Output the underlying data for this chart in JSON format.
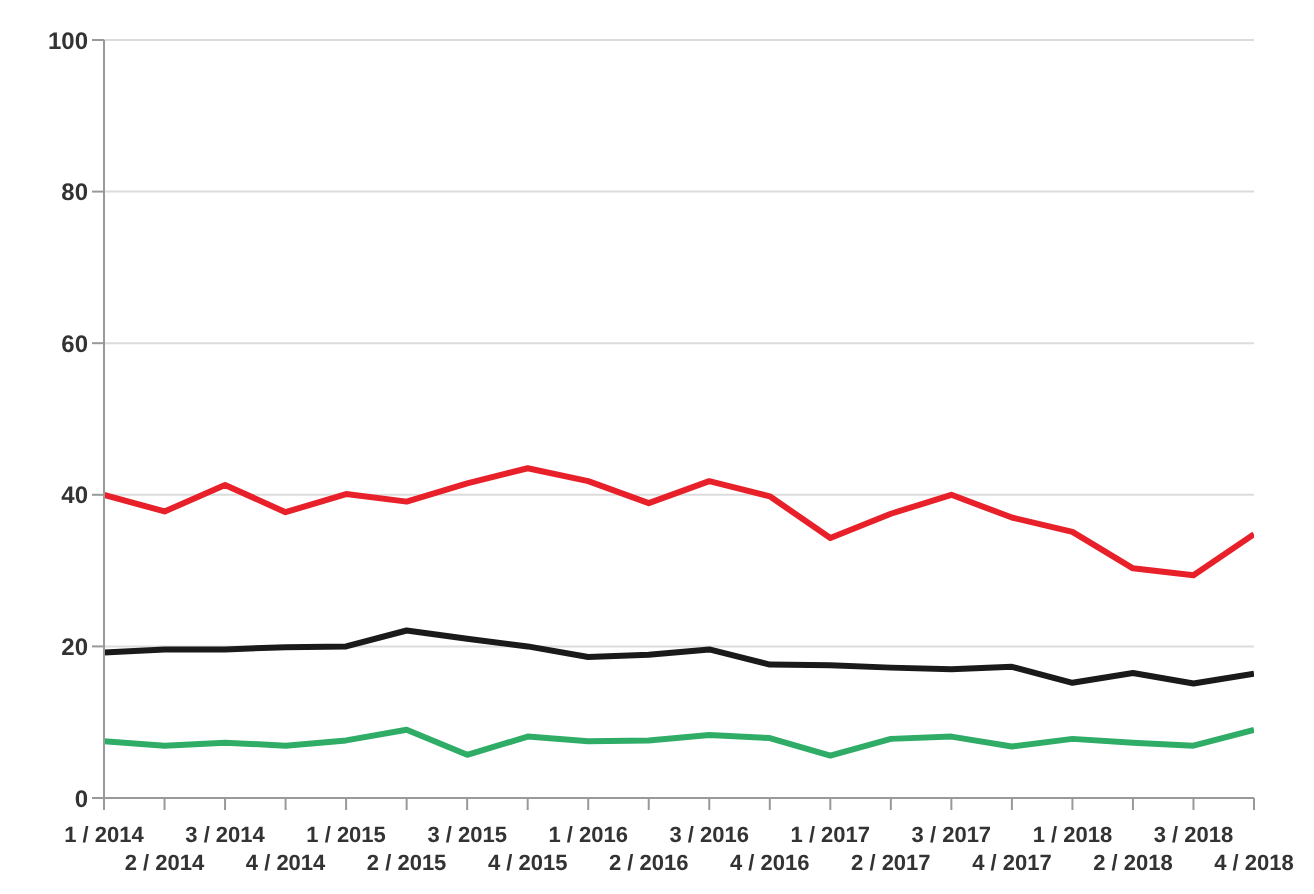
{
  "chart_data": {
    "type": "line",
    "categories": [
      "1 / 2014",
      "2 / 2014",
      "3 / 2014",
      "4 / 2014",
      "1 / 2015",
      "2 / 2015",
      "3 / 2015",
      "4 / 2015",
      "1 / 2016",
      "2 / 2016",
      "3 / 2016",
      "4 / 2016",
      "1 / 2017",
      "2 / 2017",
      "3 / 2017",
      "4 / 2017",
      "1 / 2018",
      "2 / 2018",
      "3 / 2018",
      "4 / 2018"
    ],
    "series": [
      {
        "color": "#e8202a",
        "values": [
          40,
          37.8,
          41.3,
          37.7,
          40.1,
          39.1,
          41.5,
          43.5,
          41.8,
          38.9,
          41.8,
          39.8,
          34.3,
          37.5,
          40,
          37,
          35.1,
          30.3,
          29.4,
          34.8
        ]
      },
      {
        "color": "#1a1a1a",
        "values": [
          19.2,
          19.6,
          19.6,
          19.9,
          20,
          22.1,
          21,
          20,
          18.6,
          18.9,
          19.6,
          17.6,
          17.5,
          17.2,
          17,
          17.3,
          15.2,
          16.5,
          15.1,
          16.4
        ]
      },
      {
        "color": "#2fad67",
        "values": [
          7.5,
          6.9,
          7.3,
          6.9,
          7.6,
          9,
          5.7,
          8.1,
          7.5,
          7.6,
          8.3,
          7.9,
          5.6,
          7.8,
          8.1,
          6.8,
          7.8,
          7.3,
          6.9,
          9
        ]
      }
    ],
    "ylim": [
      0,
      100
    ],
    "yticks": [
      0,
      20,
      40,
      60,
      80,
      100
    ],
    "grid": "y",
    "legend": false,
    "marker": "none",
    "line_style": "solid"
  }
}
